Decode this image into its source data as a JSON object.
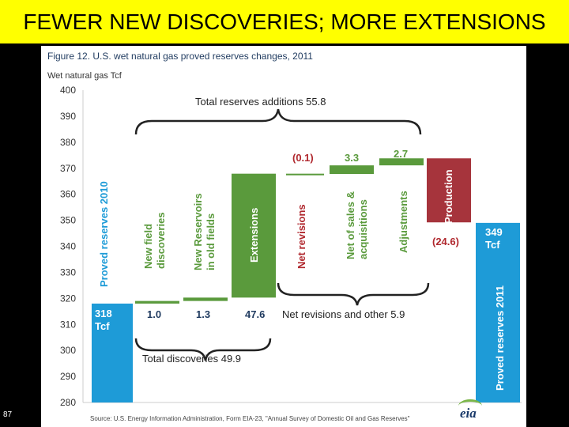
{
  "slide": {
    "title": "FEWER NEW DISCOVERIES; MORE EXTENSIONS",
    "page_number": "87"
  },
  "colors": {
    "blue": "#1e9bd7",
    "green": "#5a9a3c",
    "red": "#a6343c",
    "dark_red": "#b0282e",
    "label_text": "#1f3a5f",
    "title_bg": "#ffff00"
  },
  "logo": {
    "text": "eia"
  },
  "chart_data": {
    "type": "waterfall",
    "title": "Figure 12. U.S. wet natural gas proved reserves changes, 2011",
    "ylabel": "Wet natural gas Tcf",
    "ylim": [
      280,
      400
    ],
    "yticks": [
      280,
      290,
      300,
      310,
      320,
      330,
      340,
      350,
      360,
      370,
      380,
      390,
      400
    ],
    "source": "Source: U.S. Energy Information Administration, Form EIA-23, \"Annual Survey of Domestic Oil and Gas Reserves\"",
    "bars": [
      {
        "key": "proved2010",
        "label": "Proved reserves 2010",
        "start": 280,
        "end": 318,
        "color": "blue",
        "value_text": "318 Tcf"
      },
      {
        "key": "newfield",
        "label": "New field discoveries",
        "start": 318,
        "end": 319,
        "color": "green",
        "value_text": "1.0"
      },
      {
        "key": "newres",
        "label": "New Reservoirs in old fields",
        "start": 319,
        "end": 320.3,
        "color": "green",
        "value_text": "1.3"
      },
      {
        "key": "extensions",
        "label": "Extensions",
        "start": 320.3,
        "end": 367.9,
        "color": "green",
        "value_text": "47.6"
      },
      {
        "key": "netrev",
        "label": "Net revisions",
        "start": 367.9,
        "end": 367.8,
        "color": "green",
        "value_text": "(0.1)"
      },
      {
        "key": "sales",
        "label": "Net of sales & acquisitions",
        "start": 367.8,
        "end": 371.1,
        "color": "green",
        "value_text": "3.3"
      },
      {
        "key": "adjust",
        "label": "Adjustments",
        "start": 371.1,
        "end": 373.8,
        "color": "green",
        "value_text": "2.7"
      },
      {
        "key": "production",
        "label": "Production",
        "start": 373.8,
        "end": 349.2,
        "color": "red",
        "value_text": "(24.6)"
      },
      {
        "key": "proved2011",
        "label": "Proved reserves 2011",
        "start": 280,
        "end": 349,
        "color": "blue",
        "value_text": "349 Tcf"
      }
    ],
    "annotations": {
      "total_additions": "Total reserves additions 55.8",
      "total_discoveries": "Total discoveries 49.9",
      "net_revisions_other": "Net revisions and other 5.9"
    }
  }
}
